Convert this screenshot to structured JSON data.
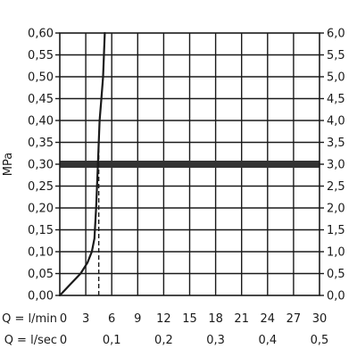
{
  "chart_data": {
    "type": "line",
    "ylabel": "MPa",
    "x_ticks": [
      "0",
      "3",
      "6",
      "9",
      "12",
      "15",
      "18",
      "21",
      "24",
      "27",
      "30"
    ],
    "x_label_lpm": "Q = l/min",
    "x2_ticks": [
      "0",
      "0,1",
      "0,2",
      "0,3",
      "0,4",
      "0,5"
    ],
    "x2_label_lps": "Q = l/sec",
    "y_ticks_left": [
      "0,00",
      "0,05",
      "0,10",
      "0,15",
      "0,20",
      "0,25",
      "0,30",
      "0,35",
      "0,40",
      "0,45",
      "0,50",
      "0,55",
      "0,60"
    ],
    "y_ticks_right": [
      "0,0",
      "0,5",
      "1,0",
      "1,5",
      "2,0",
      "2,5",
      "3,0",
      "3,5",
      "4,0",
      "4,5",
      "5,0",
      "5,5",
      "6,0"
    ],
    "xlim": [
      0,
      30
    ],
    "ylim": [
      0,
      0.6
    ],
    "grid": true,
    "series": [
      {
        "x": [
          0,
          1.2,
          2.4,
          3.2,
          3.7,
          4.0,
          4.2,
          4.4,
          4.6,
          4.8,
          5.0,
          5.2
        ],
        "y": [
          0,
          0.025,
          0.05,
          0.075,
          0.1,
          0.13,
          0.2,
          0.3,
          0.4,
          0.45,
          0.5,
          0.6
        ]
      }
    ],
    "reference_line_y": 0.3,
    "dashed_marker_x": 4.5
  }
}
